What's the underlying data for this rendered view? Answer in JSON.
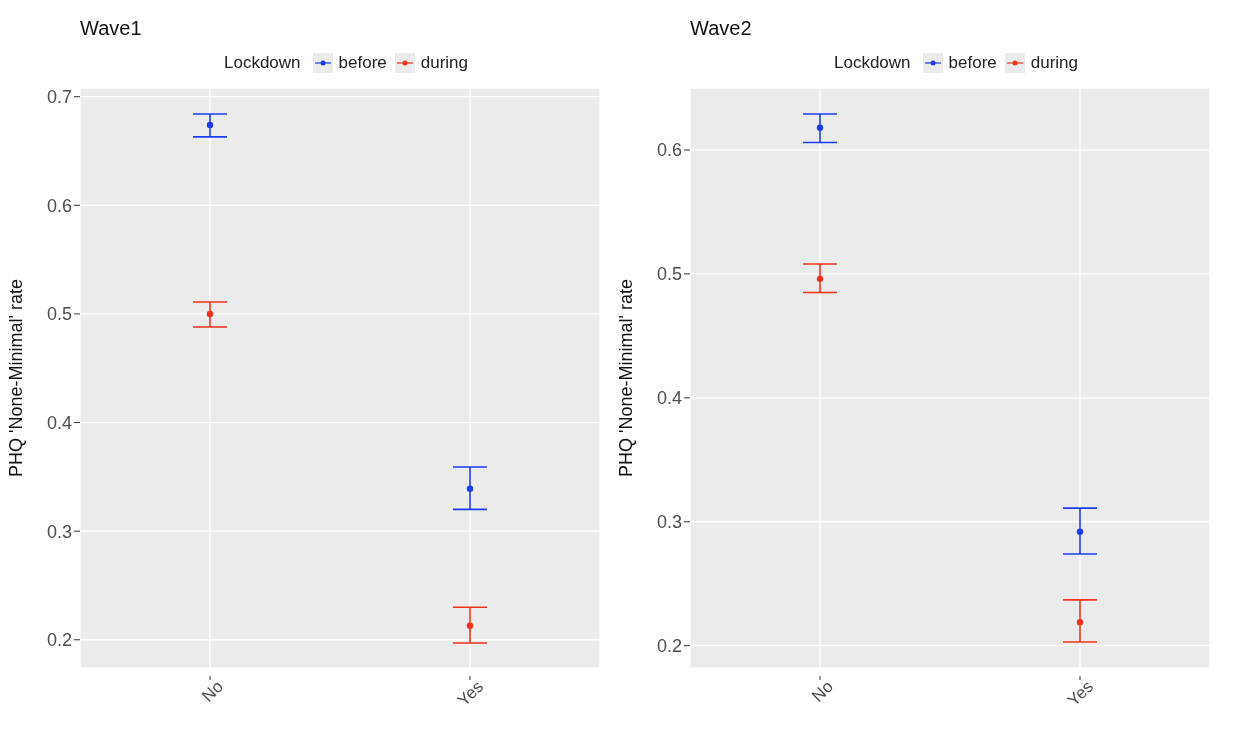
{
  "chart_data": [
    {
      "type": "scatter",
      "title": "Wave1",
      "ylabel": "PHQ 'None-Minimal' rate",
      "legend_title": "Lockdown",
      "legend": "top",
      "grid": true,
      "categories": [
        "No",
        "Yes"
      ],
      "ylim": [
        0.174,
        0.708
      ],
      "yticks": [
        0.2,
        0.3,
        0.4,
        0.5,
        0.6,
        0.7
      ],
      "series": [
        {
          "name": "before",
          "color": "#1c3cf0",
          "values": [
            0.674,
            0.339
          ],
          "errors": [
            [
              0.663,
              0.684
            ],
            [
              0.32,
              0.359
            ]
          ]
        },
        {
          "name": "during",
          "color": "#f0321e",
          "values": [
            0.5,
            0.213
          ],
          "errors": [
            [
              0.488,
              0.511
            ],
            [
              0.197,
              0.23
            ]
          ]
        }
      ]
    },
    {
      "type": "scatter",
      "title": "Wave2",
      "ylabel": "PHQ 'None-Minimal' rate",
      "legend_title": "Lockdown",
      "legend": "top",
      "grid": true,
      "categories": [
        "No",
        "Yes"
      ],
      "ylim": [
        0.182,
        0.65
      ],
      "yticks": [
        0.2,
        0.3,
        0.4,
        0.5,
        0.6
      ],
      "series": [
        {
          "name": "before",
          "color": "#1c3cf0",
          "values": [
            0.618,
            0.292
          ],
          "errors": [
            [
              0.606,
              0.629
            ],
            [
              0.274,
              0.311
            ]
          ]
        },
        {
          "name": "during",
          "color": "#f0321e",
          "values": [
            0.496,
            0.219
          ],
          "errors": [
            [
              0.485,
              0.508
            ],
            [
              0.203,
              0.237
            ]
          ]
        }
      ]
    }
  ]
}
